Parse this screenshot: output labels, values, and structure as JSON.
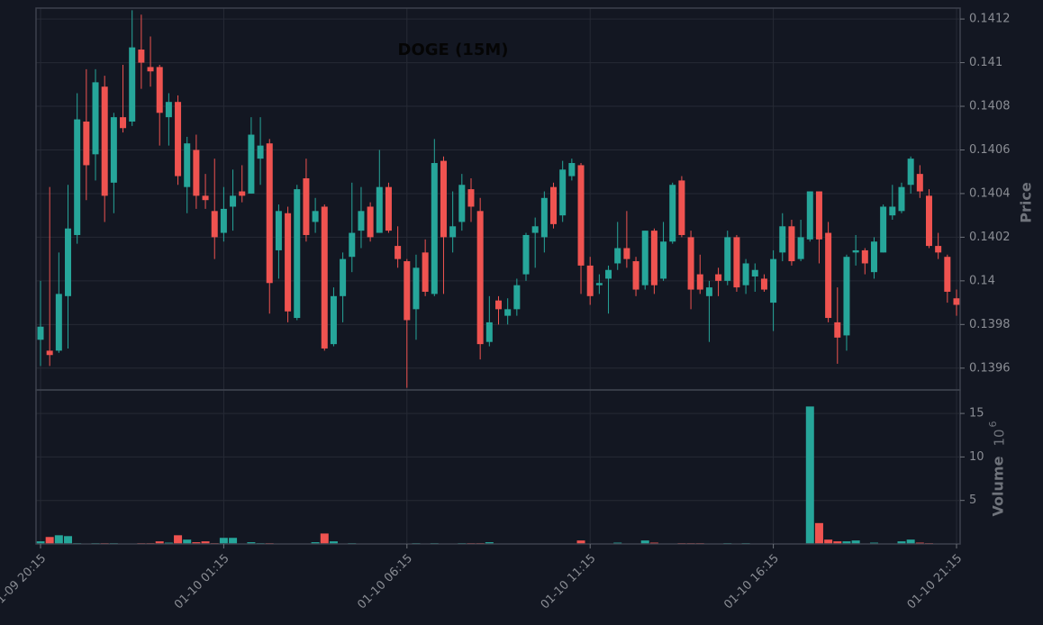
{
  "chart_data": [
    {
      "type": "candlestick",
      "title": "DOGE (15M)",
      "ylabel": "Price",
      "up_color": "#26a69a",
      "down_color": "#ef5350",
      "grid": true,
      "ylim": [
        0.1395,
        0.14125
      ],
      "yticks": [
        0.1396,
        0.1398,
        0.14,
        0.1402,
        0.1404,
        0.1406,
        0.1408,
        0.141,
        0.1412
      ],
      "categories": [
        "01-09 20:15",
        null,
        null,
        null,
        null,
        null,
        null,
        null,
        null,
        null,
        null,
        null,
        null,
        null,
        null,
        null,
        null,
        null,
        null,
        null,
        "01-10 01:15",
        null,
        null,
        null,
        null,
        null,
        null,
        null,
        null,
        null,
        null,
        null,
        null,
        null,
        null,
        null,
        null,
        null,
        null,
        null,
        "01-10 06:15",
        null,
        null,
        null,
        null,
        null,
        null,
        null,
        null,
        null,
        null,
        null,
        null,
        null,
        null,
        null,
        null,
        null,
        null,
        null,
        "01-10 11:15",
        null,
        null,
        null,
        null,
        null,
        null,
        null,
        null,
        null,
        null,
        null,
        null,
        null,
        null,
        null,
        null,
        null,
        null,
        null,
        "01-10 16:15",
        null,
        null,
        null,
        null,
        null,
        null,
        null,
        null,
        null,
        null,
        null,
        null,
        null,
        null,
        null,
        null,
        null,
        null,
        null,
        "01-10 21:15"
      ],
      "ohlc": [
        [
          0.13973,
          0.14,
          0.13961,
          0.13979
        ],
        [
          0.13968,
          0.14043,
          0.13961,
          0.13966
        ],
        [
          0.13968,
          0.14013,
          0.13967,
          0.13994
        ],
        [
          0.13993,
          0.14044,
          0.13969,
          0.14024
        ],
        [
          0.14021,
          0.14086,
          0.14017,
          0.14074
        ],
        [
          0.14073,
          0.14097,
          0.14037,
          0.14053
        ],
        [
          0.14058,
          0.14097,
          0.14046,
          0.14091
        ],
        [
          0.14089,
          0.14094,
          0.14027,
          0.14039
        ],
        [
          0.14045,
          0.14077,
          0.14031,
          0.14075
        ],
        [
          0.14075,
          0.14099,
          0.14068,
          0.1407
        ],
        [
          0.14073,
          0.14124,
          0.14071,
          0.14107
        ],
        [
          0.14106,
          0.14122,
          0.14088,
          0.141
        ],
        [
          0.14098,
          0.14112,
          0.14089,
          0.14096
        ],
        [
          0.14098,
          0.14099,
          0.14062,
          0.14077
        ],
        [
          0.14075,
          0.14086,
          0.14062,
          0.14082
        ],
        [
          0.14082,
          0.14085,
          0.14044,
          0.14048
        ],
        [
          0.14043,
          0.14066,
          0.14031,
          0.14063
        ],
        [
          0.1406,
          0.14067,
          0.14033,
          0.14039
        ],
        [
          0.14039,
          0.14049,
          0.14033,
          0.14037
        ],
        [
          0.14032,
          0.14056,
          0.1401,
          0.1402
        ],
        [
          0.14022,
          0.14043,
          0.14018,
          0.14033
        ],
        [
          0.14034,
          0.14051,
          0.14023,
          0.14039
        ],
        [
          0.14041,
          0.14053,
          0.14036,
          0.14039
        ],
        [
          0.1404,
          0.14075,
          0.1404,
          0.14067
        ],
        [
          0.14056,
          0.14075,
          0.14044,
          0.14062
        ],
        [
          0.14063,
          0.14065,
          0.13985,
          0.13999
        ],
        [
          0.14014,
          0.14035,
          0.14001,
          0.14032
        ],
        [
          0.14031,
          0.14034,
          0.13981,
          0.13986
        ],
        [
          0.13983,
          0.14044,
          0.13982,
          0.14042
        ],
        [
          0.14047,
          0.14056,
          0.14018,
          0.14021
        ],
        [
          0.14027,
          0.14038,
          0.14022,
          0.14032
        ],
        [
          0.14034,
          0.14035,
          0.13968,
          0.13969
        ],
        [
          0.13971,
          0.13997,
          0.1397,
          0.13993
        ],
        [
          0.13993,
          0.14013,
          0.13981,
          0.1401
        ],
        [
          0.14011,
          0.14045,
          0.14004,
          0.14022
        ],
        [
          0.14023,
          0.14043,
          0.14015,
          0.14032
        ],
        [
          0.14034,
          0.14036,
          0.14018,
          0.1402
        ],
        [
          0.14022,
          0.1406,
          0.14022,
          0.14043
        ],
        [
          0.14043,
          0.14045,
          0.14022,
          0.14023
        ],
        [
          0.14016,
          0.14025,
          0.14006,
          0.1401
        ],
        [
          0.14009,
          0.1401,
          0.13951,
          0.13982
        ],
        [
          0.13987,
          0.14012,
          0.13973,
          0.14006
        ],
        [
          0.14013,
          0.14019,
          0.13993,
          0.13995
        ],
        [
          0.13994,
          0.14065,
          0.13993,
          0.14054
        ],
        [
          0.14055,
          0.14057,
          0.13994,
          0.1402
        ],
        [
          0.1402,
          0.14041,
          0.14013,
          0.14025
        ],
        [
          0.14027,
          0.14049,
          0.14023,
          0.14044
        ],
        [
          0.14042,
          0.14047,
          0.14027,
          0.14034
        ],
        [
          0.14032,
          0.14038,
          0.13964,
          0.13971
        ],
        [
          0.13972,
          0.13993,
          0.1397,
          0.13981
        ],
        [
          0.13991,
          0.13993,
          0.1398,
          0.13987
        ],
        [
          0.13984,
          0.13992,
          0.1398,
          0.13987
        ],
        [
          0.13987,
          0.14001,
          0.13984,
          0.13998
        ],
        [
          0.14003,
          0.14022,
          0.14,
          0.14021
        ],
        [
          0.14022,
          0.14029,
          0.14006,
          0.14025
        ],
        [
          0.1402,
          0.14041,
          0.14013,
          0.14038
        ],
        [
          0.14043,
          0.14045,
          0.14024,
          0.14026
        ],
        [
          0.1403,
          0.14055,
          0.14027,
          0.14051
        ],
        [
          0.14048,
          0.14056,
          0.14046,
          0.14054
        ],
        [
          0.14053,
          0.14054,
          0.13994,
          0.14007
        ],
        [
          0.14007,
          0.14011,
          0.13989,
          0.13993
        ],
        [
          0.13998,
          0.14003,
          0.13994,
          0.13999
        ],
        [
          0.14001,
          0.14007,
          0.13985,
          0.14005
        ],
        [
          0.14008,
          0.14027,
          0.14005,
          0.14015
        ],
        [
          0.14015,
          0.14032,
          0.14006,
          0.1401
        ],
        [
          0.14009,
          0.14011,
          0.13993,
          0.13996
        ],
        [
          0.13998,
          0.14023,
          0.13996,
          0.14023
        ],
        [
          0.14023,
          0.14024,
          0.13994,
          0.13998
        ],
        [
          0.14001,
          0.14027,
          0.14,
          0.14018
        ],
        [
          0.14018,
          0.14045,
          0.14017,
          0.14044
        ],
        [
          0.14046,
          0.14048,
          0.1402,
          0.14021
        ],
        [
          0.1402,
          0.14023,
          0.13987,
          0.13996
        ],
        [
          0.14003,
          0.14012,
          0.13994,
          0.13996
        ],
        [
          0.13993,
          0.14,
          0.13972,
          0.13997
        ],
        [
          0.14003,
          0.14006,
          0.13993,
          0.14
        ],
        [
          0.14,
          0.14023,
          0.13998,
          0.1402
        ],
        [
          0.1402,
          0.14021,
          0.13995,
          0.13997
        ],
        [
          0.13998,
          0.1401,
          0.13994,
          0.14008
        ],
        [
          0.14002,
          0.14008,
          0.13995,
          0.14005
        ],
        [
          0.14001,
          0.14003,
          0.13995,
          0.13996
        ],
        [
          0.1399,
          0.14014,
          0.13977,
          0.1401
        ],
        [
          0.14013,
          0.14031,
          0.14009,
          0.14025
        ],
        [
          0.14025,
          0.14028,
          0.14007,
          0.14009
        ],
        [
          0.1401,
          0.14028,
          0.14009,
          0.1402
        ],
        [
          0.14019,
          0.14041,
          0.14018,
          0.14041
        ],
        [
          0.14041,
          0.14041,
          0.14008,
          0.14019
        ],
        [
          0.14022,
          0.14027,
          0.13981,
          0.13983
        ],
        [
          0.13981,
          0.13997,
          0.13962,
          0.13974
        ],
        [
          0.13975,
          0.14012,
          0.13968,
          0.14011
        ],
        [
          0.14013,
          0.14021,
          0.14007,
          0.14014
        ],
        [
          0.14014,
          0.14015,
          0.14003,
          0.14008
        ],
        [
          0.14004,
          0.1402,
          0.14001,
          0.14018
        ],
        [
          0.14013,
          0.14035,
          0.14013,
          0.14034
        ],
        [
          0.1403,
          0.14044,
          0.14028,
          0.14034
        ],
        [
          0.14032,
          0.14045,
          0.14031,
          0.14043
        ],
        [
          0.14044,
          0.14057,
          0.1404,
          0.14056
        ],
        [
          0.14049,
          0.14053,
          0.14038,
          0.14041
        ],
        [
          0.14039,
          0.14042,
          0.14015,
          0.14016
        ],
        [
          0.14016,
          0.14022,
          0.1401,
          0.14013
        ],
        [
          0.14011,
          0.14012,
          0.1399,
          0.13995
        ],
        [
          0.13992,
          0.13996,
          0.13984,
          0.13989
        ]
      ]
    },
    {
      "type": "bar",
      "ylabel": "Volume",
      "offset_base": "10",
      "offset_exponent": "6",
      "grid": true,
      "ylim": [
        0,
        17.7
      ],
      "yticks": [
        5,
        10,
        15
      ],
      "values": [
        0.3,
        0.8,
        1.0,
        0.9,
        0.1,
        0.05,
        0.1,
        0.1,
        0.1,
        0.05,
        0.05,
        0.1,
        0.1,
        0.3,
        0.15,
        1.0,
        0.5,
        0.2,
        0.3,
        0.1,
        0.7,
        0.7,
        0.05,
        0.2,
        0.1,
        0.1,
        0.05,
        0.05,
        0.05,
        0.05,
        0.2,
        1.2,
        0.3,
        0.05,
        0.1,
        0.05,
        0.05,
        0.05,
        0.05,
        0.05,
        0.05,
        0.1,
        0.05,
        0.1,
        0.05,
        0.05,
        0.1,
        0.1,
        0.1,
        0.2,
        0.05,
        0.05,
        0.05,
        0.05,
        0.05,
        0.05,
        0.05,
        0.05,
        0.05,
        0.4,
        0.05,
        0.05,
        0.05,
        0.15,
        0.05,
        0.05,
        0.4,
        0.15,
        0.05,
        0.05,
        0.1,
        0.1,
        0.1,
        0.05,
        0.05,
        0.1,
        0.05,
        0.1,
        0.05,
        0.05,
        0.05,
        0.05,
        0.05,
        0.05,
        15.8,
        2.4,
        0.5,
        0.3,
        0.3,
        0.4,
        0.05,
        0.15,
        0.05,
        0.05,
        0.3,
        0.5,
        0.15,
        0.1,
        0.05,
        0.05,
        0.05
      ]
    }
  ]
}
